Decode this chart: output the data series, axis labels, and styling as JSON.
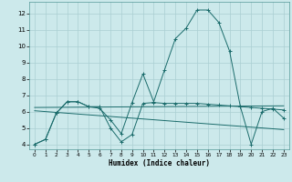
{
  "xlabel": "Humidex (Indice chaleur)",
  "bg_color": "#cce9eb",
  "grid_color": "#aacfd2",
  "line_color": "#1a6b6b",
  "xlim": [
    -0.5,
    23.5
  ],
  "ylim": [
    3.7,
    12.7
  ],
  "yticks": [
    4,
    5,
    6,
    7,
    8,
    9,
    10,
    11,
    12
  ],
  "xticks": [
    0,
    1,
    2,
    3,
    4,
    5,
    6,
    7,
    8,
    9,
    10,
    11,
    12,
    13,
    14,
    15,
    16,
    17,
    18,
    19,
    20,
    21,
    22,
    23
  ],
  "series": [
    {
      "x": [
        0,
        1,
        2,
        3,
        4,
        5,
        6,
        7,
        8,
        9,
        10,
        11,
        12,
        13,
        14,
        15,
        16,
        17,
        18,
        19,
        20,
        21,
        22,
        23
      ],
      "y": [
        4.0,
        4.3,
        5.9,
        6.6,
        6.6,
        6.3,
        6.2,
        5.5,
        4.65,
        6.55,
        8.3,
        6.6,
        8.55,
        10.45,
        11.1,
        12.2,
        12.2,
        11.45,
        9.7,
        6.3,
        4.0,
        6.0,
        6.2,
        5.6
      ],
      "markers": true
    },
    {
      "x": [
        0,
        1,
        2,
        3,
        4,
        5,
        6,
        7,
        8,
        9,
        10,
        11,
        12,
        13,
        14,
        15,
        16,
        17,
        18,
        19,
        20,
        21,
        22,
        23
      ],
      "y": [
        4.0,
        4.3,
        5.9,
        6.6,
        6.6,
        6.3,
        6.3,
        5.0,
        4.15,
        4.6,
        6.5,
        6.55,
        6.5,
        6.5,
        6.5,
        6.5,
        6.45,
        6.4,
        6.35,
        6.3,
        6.25,
        6.2,
        6.15,
        6.1
      ],
      "markers": true
    },
    {
      "x": [
        0,
        23
      ],
      "y": [
        6.25,
        6.35
      ],
      "markers": false
    },
    {
      "x": [
        0,
        23
      ],
      "y": [
        6.05,
        4.9
      ],
      "markers": false
    }
  ]
}
